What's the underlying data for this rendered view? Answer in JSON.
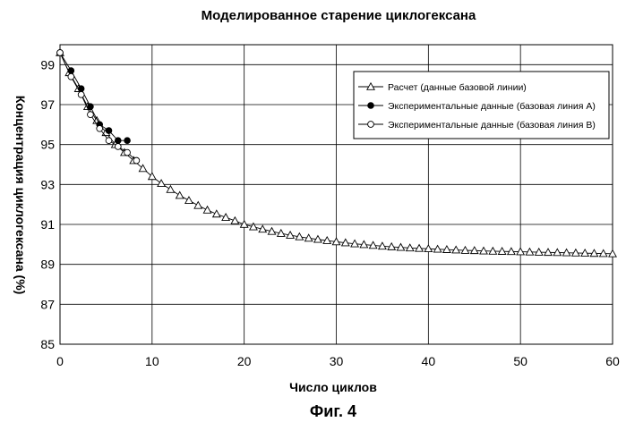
{
  "figure_caption": "Фиг. 4",
  "chart_data": {
    "type": "line",
    "title": "Моделированное старение циклогексана",
    "xlabel": "Число циклов",
    "ylabel": "Концентрация циклогексана (%)",
    "xlim": [
      0,
      60
    ],
    "ylim": [
      85,
      100
    ],
    "x_ticks": [
      "0",
      "10",
      "20",
      "30",
      "40",
      "50",
      "60"
    ],
    "y_ticks": [
      "85",
      "87",
      "89",
      "91",
      "93",
      "95",
      "97",
      "99"
    ],
    "grid": true,
    "legend_position": "top-right",
    "series": [
      {
        "name": "Расчет (данные базовой линии)",
        "marker": "open-triangle",
        "color": "#000000",
        "x": [
          0,
          1,
          2,
          3,
          4,
          5,
          6,
          7,
          8,
          9,
          10,
          11,
          12,
          13,
          14,
          15,
          16,
          17,
          18,
          19,
          20,
          21,
          22,
          23,
          24,
          25,
          26,
          27,
          28,
          29,
          30,
          31,
          32,
          33,
          34,
          35,
          36,
          37,
          38,
          39,
          40,
          41,
          42,
          43,
          44,
          45,
          46,
          47,
          48,
          49,
          50,
          51,
          52,
          53,
          54,
          55,
          56,
          57,
          58,
          59,
          60
        ],
        "y": [
          99.6,
          98.6,
          97.8,
          96.9,
          96.2,
          95.6,
          95.0,
          94.6,
          94.2,
          93.8,
          93.4,
          93.05,
          92.75,
          92.45,
          92.2,
          91.95,
          91.72,
          91.52,
          91.35,
          91.18,
          91.0,
          90.88,
          90.76,
          90.65,
          90.55,
          90.46,
          90.38,
          90.31,
          90.25,
          90.19,
          90.13,
          90.08,
          90.03,
          89.99,
          89.95,
          89.91,
          89.88,
          89.85,
          89.82,
          89.8,
          89.78,
          89.76,
          89.74,
          89.72,
          89.7,
          89.69,
          89.67,
          89.66,
          89.65,
          89.64,
          89.63,
          89.62,
          89.61,
          89.6,
          89.59,
          89.58,
          89.57,
          89.56,
          89.55,
          89.54,
          89.53
        ]
      },
      {
        "name": "Экспериментальные данные (базовая линия А)",
        "marker": "filled-circle",
        "color": "#000000",
        "x": [
          0,
          1.2,
          2.3,
          3.3,
          4.3,
          5.3,
          6.3,
          7.3
        ],
        "y": [
          99.6,
          98.7,
          97.8,
          96.9,
          96.0,
          95.7,
          95.2,
          95.2
        ]
      },
      {
        "name": "Экспериментальные данные (базовая линия В)",
        "marker": "open-circle",
        "color": "#000000",
        "x": [
          0,
          1.2,
          2.3,
          3.3,
          4.3,
          5.3,
          6.3,
          7.3,
          8.3
        ],
        "y": [
          99.6,
          98.4,
          97.5,
          96.5,
          95.8,
          95.2,
          94.9,
          94.6,
          94.2
        ]
      }
    ]
  }
}
